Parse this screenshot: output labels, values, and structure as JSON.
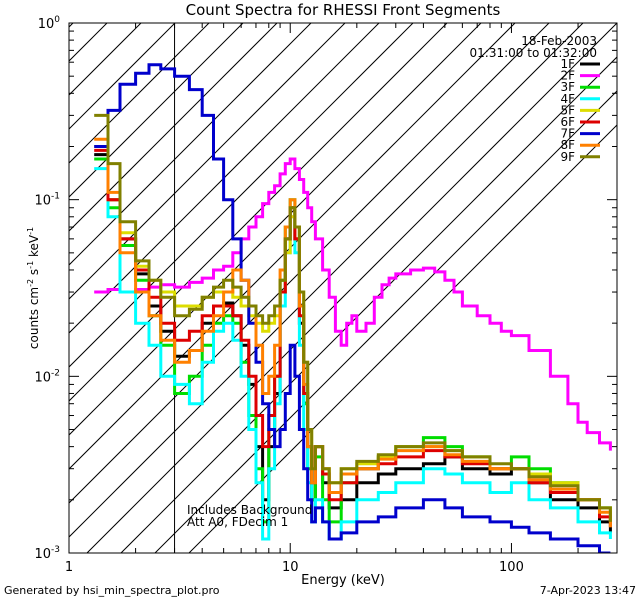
{
  "chart_data": {
    "type": "line",
    "title": "Count Spectra for RHESSI Front Segments",
    "xlabel": "Energy (keV)",
    "ylabel_parts": [
      "counts cm",
      "-2",
      " s",
      "-1",
      " keV",
      "-1"
    ],
    "xscale": "log",
    "yscale": "log",
    "xlim": [
      1,
      300
    ],
    "ylim": [
      0.001,
      1
    ],
    "x_ticks": [
      {
        "value": 1,
        "label": "1"
      },
      {
        "value": 10,
        "label": "10"
      },
      {
        "value": 100,
        "label": "100"
      }
    ],
    "y_ticks": [
      {
        "value": 1,
        "base": "10",
        "exp": "0"
      },
      {
        "value": 0.1,
        "base": "10",
        "exp": "-1"
      },
      {
        "value": 0.01,
        "base": "10",
        "exp": "-2"
      },
      {
        "value": 0.001,
        "base": "10",
        "exp": "-3"
      }
    ],
    "header_text": {
      "date": "18-Feb-2003",
      "time_range": "01:31:00 to 01:32:00"
    },
    "annotations": [
      "Includes Background",
      "Att A0, FDecim 1"
    ],
    "hatched_region": {
      "x_from": 1,
      "x_to": 3
    },
    "legend_position": "top-right",
    "series": [
      {
        "name": "1F",
        "color": "#000000",
        "x": [
          1.3,
          1.5,
          1.7,
          2,
          2.3,
          2.6,
          3,
          3.5,
          4,
          4.5,
          5,
          5.5,
          6,
          6.5,
          7,
          7.5,
          8,
          8.5,
          9,
          9.5,
          10,
          10.5,
          11,
          11.5,
          12,
          12.5,
          13,
          14,
          15,
          17,
          20,
          25,
          30,
          40,
          50,
          60,
          80,
          100,
          120,
          150,
          200,
          250,
          280
        ],
        "y": [
          0.18,
          0.1,
          0.06,
          0.038,
          0.025,
          0.018,
          0.013,
          0.014,
          0.02,
          0.025,
          0.026,
          0.022,
          0.015,
          0.009,
          0.004,
          0.002,
          0.004,
          0.008,
          0.03,
          0.06,
          0.09,
          0.06,
          0.02,
          0.008,
          0.004,
          0.002,
          0.004,
          0.0025,
          0.0018,
          0.002,
          0.0025,
          0.0028,
          0.003,
          0.0032,
          0.0035,
          0.003,
          0.0028,
          0.003,
          0.0025,
          0.002,
          0.0018,
          0.0015,
          0.0013
        ]
      },
      {
        "name": "2F",
        "color": "#ff00ff",
        "x": [
          1.3,
          1.5,
          1.7,
          2,
          2.3,
          2.6,
          3,
          3.5,
          4,
          4.5,
          5,
          5.5,
          6,
          6.5,
          7,
          7.5,
          8,
          8.5,
          9,
          9.5,
          10,
          10.5,
          11,
          11.5,
          12,
          12.5,
          13,
          14,
          15,
          16,
          17,
          18,
          19,
          20,
          22,
          24,
          26,
          28,
          30,
          35,
          40,
          45,
          50,
          55,
          60,
          70,
          80,
          90,
          100,
          120,
          150,
          180,
          200,
          220,
          250,
          280
        ],
        "y": [
          0.03,
          0.031,
          0.03,
          0.031,
          0.032,
          0.033,
          0.032,
          0.034,
          0.036,
          0.04,
          0.042,
          0.05,
          0.06,
          0.07,
          0.08,
          0.095,
          0.11,
          0.12,
          0.14,
          0.16,
          0.17,
          0.15,
          0.13,
          0.11,
          0.09,
          0.075,
          0.06,
          0.04,
          0.028,
          0.018,
          0.015,
          0.02,
          0.022,
          0.018,
          0.02,
          0.028,
          0.033,
          0.036,
          0.038,
          0.04,
          0.041,
          0.039,
          0.035,
          0.03,
          0.025,
          0.022,
          0.02,
          0.018,
          0.017,
          0.014,
          0.01,
          0.007,
          0.0055,
          0.0048,
          0.0042,
          0.0038
        ]
      },
      {
        "name": "3F",
        "color": "#00dd00",
        "x": [
          1.3,
          1.5,
          1.7,
          2,
          2.3,
          2.6,
          3,
          3.5,
          4,
          4.5,
          5,
          5.5,
          6,
          6.5,
          7,
          7.5,
          8,
          8.5,
          9,
          9.5,
          10,
          10.5,
          11,
          11.5,
          12,
          12.5,
          13,
          14,
          15,
          17,
          20,
          25,
          30,
          40,
          50,
          60,
          80,
          100,
          120,
          150,
          200,
          250,
          280
        ],
        "y": [
          0.17,
          0.09,
          0.055,
          0.035,
          0.022,
          0.015,
          0.008,
          0.01,
          0.015,
          0.02,
          0.022,
          0.02,
          0.012,
          0.006,
          0.003,
          0.0015,
          0.005,
          0.01,
          0.035,
          0.07,
          0.1,
          0.07,
          0.025,
          0.007,
          0.003,
          0.002,
          0.0035,
          0.002,
          0.0015,
          0.0025,
          0.003,
          0.0035,
          0.004,
          0.0045,
          0.004,
          0.0035,
          0.003,
          0.0035,
          0.003,
          0.0025,
          0.002,
          0.0018,
          0.0015
        ]
      },
      {
        "name": "4F",
        "color": "#00ffff",
        "x": [
          1.3,
          1.5,
          1.7,
          2,
          2.3,
          2.6,
          3,
          3.5,
          4,
          4.5,
          5,
          5.5,
          6,
          6.5,
          7,
          7.5,
          8,
          8.5,
          9,
          9.5,
          10,
          10.5,
          11,
          11.5,
          12,
          12.5,
          13,
          14,
          15,
          17,
          20,
          25,
          30,
          40,
          50,
          60,
          80,
          100,
          120,
          150,
          200,
          250,
          280
        ],
        "y": [
          0.15,
          0.08,
          0.03,
          0.02,
          0.015,
          0.01,
          0.009,
          0.007,
          0.012,
          0.018,
          0.02,
          0.016,
          0.01,
          0.005,
          0.0025,
          0.0012,
          0.003,
          0.007,
          0.025,
          0.05,
          0.08,
          0.05,
          0.015,
          0.005,
          0.0025,
          0.0015,
          0.002,
          0.0015,
          0.0012,
          0.0015,
          0.002,
          0.0022,
          0.0025,
          0.003,
          0.0028,
          0.0025,
          0.0022,
          0.0025,
          0.002,
          0.0018,
          0.0015,
          0.0013,
          0.0012
        ]
      },
      {
        "name": "5F",
        "color": "#dddd00",
        "x": [
          1.3,
          1.5,
          1.7,
          2,
          2.3,
          2.6,
          3,
          3.5,
          4,
          4.5,
          5,
          5.5,
          6,
          6.5,
          7,
          7.5,
          8,
          8.5,
          9,
          9.5,
          10,
          10.5,
          11,
          11.5,
          12,
          12.5,
          13,
          14,
          15,
          17,
          20,
          25,
          30,
          40,
          50,
          60,
          80,
          100,
          120,
          150,
          200,
          250,
          280
        ],
        "y": [
          0.2,
          0.1,
          0.065,
          0.042,
          0.035,
          0.03,
          0.025,
          0.025,
          0.028,
          0.03,
          0.03,
          0.028,
          0.025,
          0.022,
          0.02,
          0.018,
          0.02,
          0.022,
          0.03,
          0.05,
          0.08,
          0.06,
          0.03,
          0.012,
          0.005,
          0.003,
          0.004,
          0.003,
          0.0025,
          0.003,
          0.0032,
          0.0035,
          0.004,
          0.004,
          0.0038,
          0.0035,
          0.003,
          0.003,
          0.0028,
          0.0025,
          0.002,
          0.0018,
          0.0015
        ]
      },
      {
        "name": "6F",
        "color": "#dd0000",
        "x": [
          1.3,
          1.5,
          1.7,
          2,
          2.3,
          2.6,
          3,
          3.5,
          4,
          4.5,
          5,
          5.5,
          6,
          6.5,
          7,
          7.5,
          8,
          8.5,
          9,
          9.5,
          10,
          10.5,
          11,
          11.5,
          12,
          12.5,
          13,
          14,
          15,
          17,
          20,
          25,
          30,
          40,
          50,
          60,
          80,
          100,
          120,
          150,
          200,
          250,
          280
        ],
        "y": [
          0.19,
          0.1,
          0.06,
          0.04,
          0.028,
          0.02,
          0.016,
          0.018,
          0.022,
          0.025,
          0.025,
          0.022,
          0.016,
          0.01,
          0.006,
          0.004,
          0.006,
          0.01,
          0.03,
          0.06,
          0.09,
          0.06,
          0.022,
          0.008,
          0.004,
          0.0025,
          0.004,
          0.0028,
          0.002,
          0.0025,
          0.003,
          0.0032,
          0.0035,
          0.0038,
          0.0035,
          0.0032,
          0.003,
          0.003,
          0.0025,
          0.0022,
          0.002,
          0.0016,
          0.0014
        ]
      },
      {
        "name": "7F",
        "color": "#0000cc",
        "x": [
          1.3,
          1.5,
          1.7,
          2,
          2.3,
          2.6,
          3,
          3.5,
          4,
          4.5,
          5,
          5.5,
          6,
          6.5,
          7,
          7.5,
          8,
          8.5,
          9,
          9.5,
          10,
          10.5,
          11,
          11.5,
          12,
          12.5,
          13,
          14,
          15,
          17,
          20,
          25,
          30,
          40,
          50,
          60,
          80,
          100,
          120,
          150,
          200,
          250,
          280
        ],
        "y": [
          0.2,
          0.32,
          0.45,
          0.52,
          0.58,
          0.55,
          0.5,
          0.42,
          0.3,
          0.17,
          0.1,
          0.06,
          0.035,
          0.02,
          0.012,
          0.007,
          0.005,
          0.004,
          0.005,
          0.008,
          0.015,
          0.01,
          0.005,
          0.003,
          0.002,
          0.0015,
          0.0018,
          0.0015,
          0.0012,
          0.0013,
          0.0015,
          0.0016,
          0.0018,
          0.002,
          0.0018,
          0.0016,
          0.0015,
          0.0014,
          0.0013,
          0.0012,
          0.0011,
          0.001,
          0.001
        ]
      },
      {
        "name": "8F",
        "color": "#ff8000",
        "x": [
          1.3,
          1.5,
          1.7,
          2,
          2.3,
          2.6,
          3,
          3.5,
          4,
          4.5,
          5,
          5.5,
          6,
          6.5,
          7,
          7.5,
          8,
          8.5,
          9,
          9.5,
          10,
          10.5,
          11,
          11.5,
          12,
          12.5,
          13,
          14,
          15,
          17,
          20,
          25,
          30,
          40,
          50,
          60,
          80,
          100,
          120,
          150,
          200,
          250,
          280
        ],
        "y": [
          0.22,
          0.11,
          0.05,
          0.03,
          0.022,
          0.016,
          0.012,
          0.014,
          0.018,
          0.022,
          0.03,
          0.04,
          0.035,
          0.025,
          0.015,
          0.008,
          0.01,
          0.015,
          0.04,
          0.07,
          0.1,
          0.07,
          0.025,
          0.009,
          0.004,
          0.0025,
          0.004,
          0.003,
          0.0022,
          0.0028,
          0.003,
          0.0034,
          0.0038,
          0.004,
          0.0036,
          0.0033,
          0.003,
          0.003,
          0.0026,
          0.0023,
          0.002,
          0.0017,
          0.0014
        ]
      },
      {
        "name": "9F",
        "color": "#808000",
        "x": [
          1.3,
          1.5,
          1.7,
          2,
          2.3,
          2.6,
          3,
          3.5,
          4,
          4.5,
          5,
          5.5,
          6,
          6.5,
          7,
          7.5,
          8,
          8.5,
          9,
          9.5,
          10,
          10.5,
          11,
          11.5,
          12,
          12.5,
          13,
          14,
          15,
          17,
          20,
          25,
          30,
          40,
          50,
          60,
          80,
          100,
          120,
          150,
          200,
          250,
          280
        ],
        "y": [
          0.3,
          0.16,
          0.075,
          0.045,
          0.035,
          0.028,
          0.022,
          0.024,
          0.028,
          0.032,
          0.035,
          0.032,
          0.028,
          0.025,
          0.022,
          0.02,
          0.022,
          0.025,
          0.035,
          0.06,
          0.09,
          0.07,
          0.03,
          0.012,
          0.005,
          0.003,
          0.004,
          0.003,
          0.0025,
          0.003,
          0.0033,
          0.0036,
          0.004,
          0.0042,
          0.0038,
          0.0035,
          0.0032,
          0.003,
          0.0027,
          0.0024,
          0.002,
          0.0018,
          0.0015
        ]
      }
    ]
  },
  "footer": {
    "generated_by": "Generated by hsi_min_spectra_plot.pro",
    "date": "7-Apr-2023 13:47"
  }
}
